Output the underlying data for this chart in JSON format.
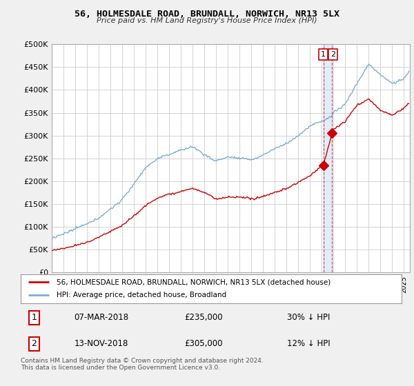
{
  "title": "56, HOLMESDALE ROAD, BRUNDALL, NORWICH, NR13 5LX",
  "subtitle": "Price paid vs. HM Land Registry's House Price Index (HPI)",
  "ylabel_ticks": [
    "£0",
    "£50K",
    "£100K",
    "£150K",
    "£200K",
    "£250K",
    "£300K",
    "£350K",
    "£400K",
    "£450K",
    "£500K"
  ],
  "ytick_values": [
    0,
    50000,
    100000,
    150000,
    200000,
    250000,
    300000,
    350000,
    400000,
    450000,
    500000
  ],
  "xmin": 1995.0,
  "xmax": 2025.5,
  "ymin": 0,
  "ymax": 500000,
  "hpi_color": "#7aaed6",
  "price_color": "#cc0000",
  "sale1_date": 2018.17,
  "sale1_price": 235000,
  "sale1_label": "07-MAR-2018",
  "sale1_hpi_pct": "30% ↓ HPI",
  "sale2_date": 2018.88,
  "sale2_price": 305000,
  "sale2_label": "13-NOV-2018",
  "sale2_hpi_pct": "12% ↓ HPI",
  "legend_line1": "56, HOLMESDALE ROAD, BRUNDALL, NORWICH, NR13 5LX (detached house)",
  "legend_line2": "HPI: Average price, detached house, Broadland",
  "footer": "Contains HM Land Registry data © Crown copyright and database right 2024.\nThis data is licensed under the Open Government Licence v3.0.",
  "background_color": "#f0f0f0",
  "plot_bg_color": "#ffffff",
  "grid_color": "#cccccc"
}
